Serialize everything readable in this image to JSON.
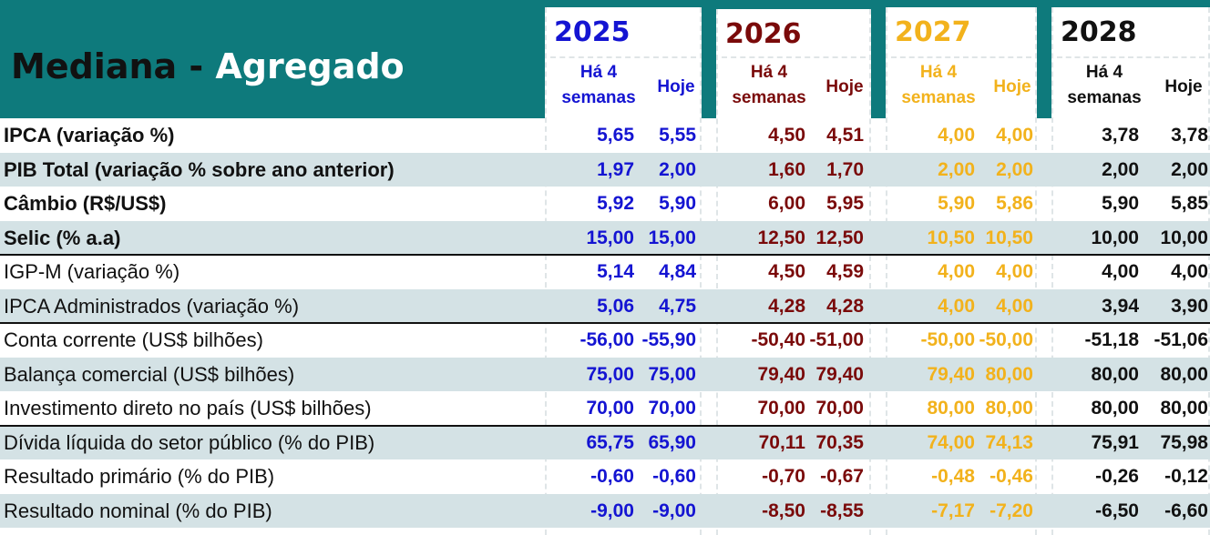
{
  "title": {
    "part1": "Mediana -",
    "part2": "Agregado"
  },
  "years": [
    {
      "year": "2025",
      "col1": "Há 4 semanas",
      "col2": "Hoje",
      "color": "#1414d2"
    },
    {
      "year": "2026",
      "col1": "Há 4 semanas",
      "col2": "Hoje",
      "color": "#7a0a0a"
    },
    {
      "year": "2027",
      "col1": "Há 4 semanas",
      "col2": "Hoje",
      "color": "#f2b21c"
    },
    {
      "year": "2028",
      "col1": "Há 4 semanas",
      "col2": "Hoje",
      "color": "#111111"
    }
  ],
  "header_colors": {
    "band": "#0e7a7c",
    "row_shade": "#d4e2e5"
  },
  "rows": [
    {
      "label": "IPCA (variação %)",
      "bold": true,
      "v": [
        "5,65",
        "5,55",
        "4,50",
        "4,51",
        "4,00",
        "4,00",
        "3,78",
        "3,78"
      ]
    },
    {
      "label": "PIB Total (variação % sobre ano anterior)",
      "bold": true,
      "v": [
        "1,97",
        "2,00",
        "1,60",
        "1,70",
        "2,00",
        "2,00",
        "2,00",
        "2,00"
      ]
    },
    {
      "label": "Câmbio (R$/US$)",
      "bold": true,
      "v": [
        "5,92",
        "5,90",
        "6,00",
        "5,95",
        "5,90",
        "5,86",
        "5,90",
        "5,85"
      ]
    },
    {
      "label": "Selic (% a.a)",
      "bold": true,
      "v": [
        "15,00",
        "15,00",
        "12,50",
        "12,50",
        "10,50",
        "10,50",
        "10,00",
        "10,00"
      ]
    },
    {
      "label": "IGP-M (variação %)",
      "bold": false,
      "v": [
        "5,14",
        "4,84",
        "4,50",
        "4,59",
        "4,00",
        "4,00",
        "4,00",
        "4,00"
      ]
    },
    {
      "label": "IPCA Administrados (variação %)",
      "bold": false,
      "v": [
        "5,06",
        "4,75",
        "4,28",
        "4,28",
        "4,00",
        "4,00",
        "3,94",
        "3,90"
      ]
    },
    {
      "label": "Conta corrente (US$ bilhões)",
      "bold": false,
      "v": [
        "-56,00",
        "-55,90",
        "-50,40",
        "-51,00",
        "-50,00",
        "-50,00",
        "-51,18",
        "-51,06"
      ]
    },
    {
      "label": "Balança comercial (US$ bilhões)",
      "bold": false,
      "v": [
        "75,00",
        "75,00",
        "79,40",
        "79,40",
        "79,40",
        "80,00",
        "80,00",
        "80,00"
      ]
    },
    {
      "label": "Investimento direto no país (US$ bilhões)",
      "bold": false,
      "v": [
        "70,00",
        "70,00",
        "70,00",
        "70,00",
        "80,00",
        "80,00",
        "80,00",
        "80,00"
      ]
    },
    {
      "label": "Dívida líquida do setor público (% do PIB)",
      "bold": false,
      "v": [
        "65,75",
        "65,90",
        "70,11",
        "70,35",
        "74,00",
        "74,13",
        "75,91",
        "75,98"
      ]
    },
    {
      "label": "Resultado primário (% do PIB)",
      "bold": false,
      "v": [
        "-0,60",
        "-0,60",
        "-0,70",
        "-0,67",
        "-0,48",
        "-0,46",
        "-0,26",
        "-0,12"
      ]
    },
    {
      "label": "Resultado nominal (% do PIB)",
      "bold": false,
      "v": [
        "-9,00",
        "-9,00",
        "-8,50",
        "-8,55",
        "-7,17",
        "-7,20",
        "-6,50",
        "-6,60"
      ]
    }
  ]
}
